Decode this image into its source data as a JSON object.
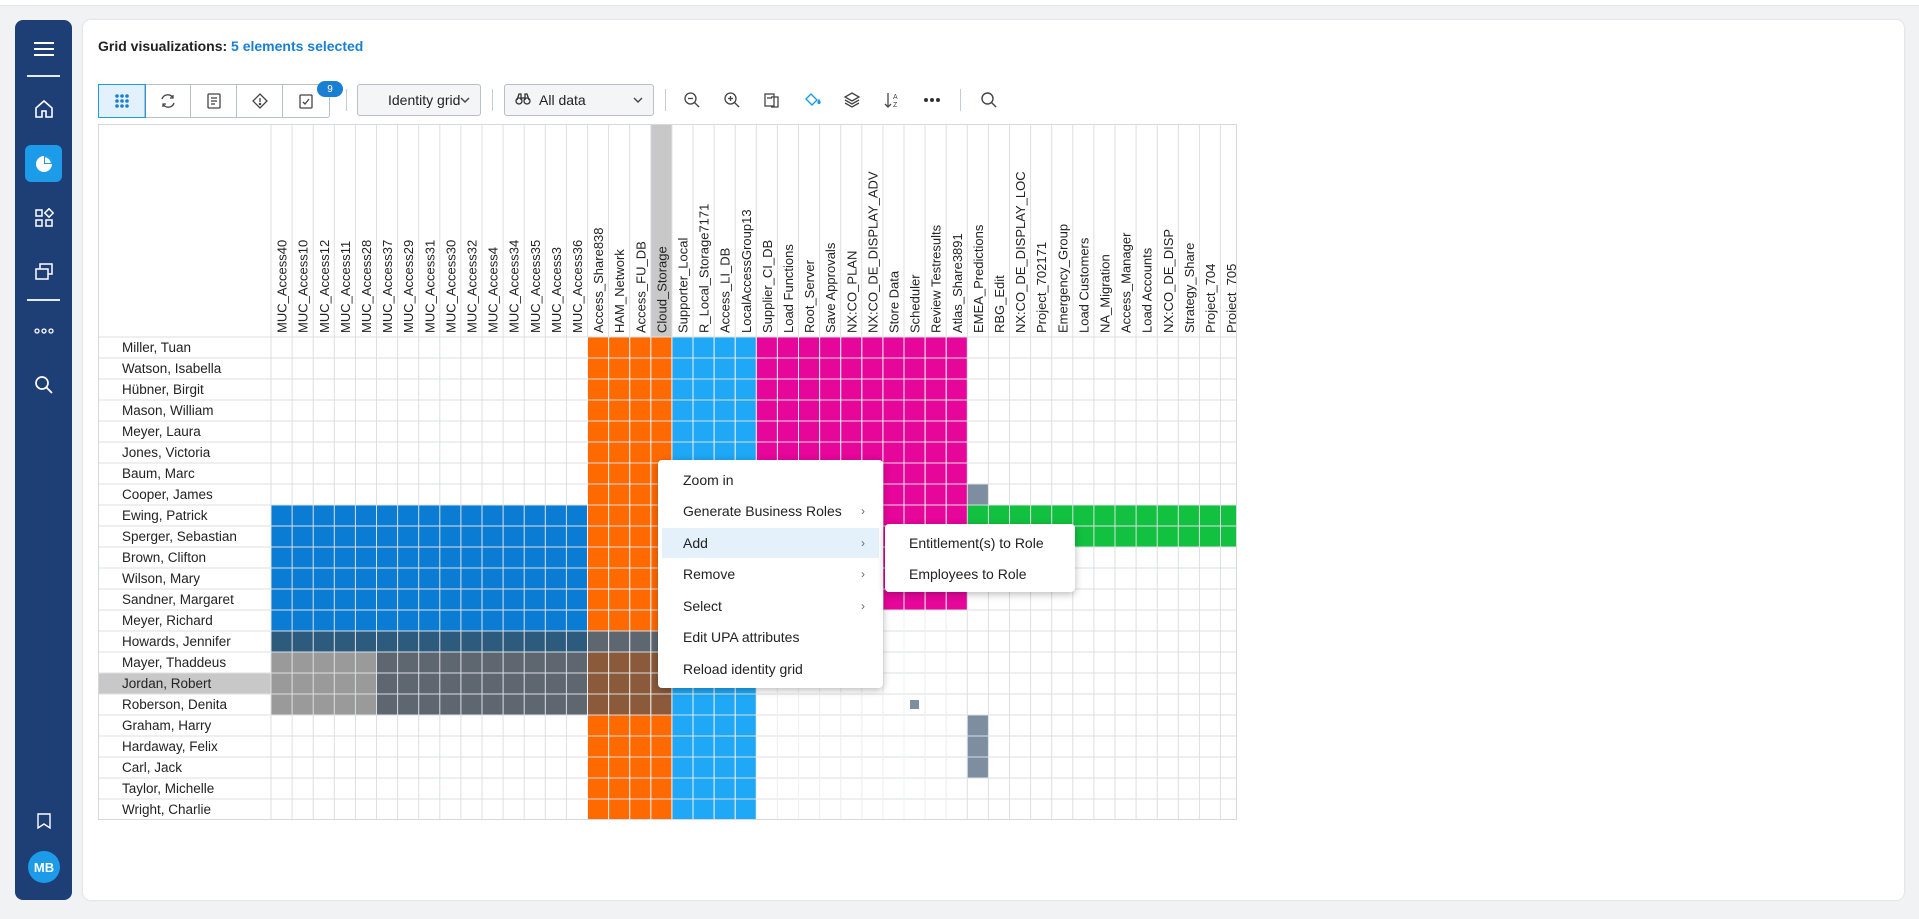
{
  "header": {
    "title_prefix": "Grid visualizations:",
    "selection_text": "5 elements selected"
  },
  "sidebar": {
    "items": [
      {
        "name": "menu-icon"
      },
      {
        "name": "home-icon"
      },
      {
        "name": "chart-pie-icon",
        "active": true
      },
      {
        "name": "dashboard-icon"
      },
      {
        "name": "copy-icon"
      },
      {
        "name": "more-icon"
      },
      {
        "name": "search-icon"
      },
      {
        "name": "book-icon"
      }
    ],
    "avatar_initials": "MB"
  },
  "toolbar": {
    "view_buttons": [
      "grid-view-icon",
      "refresh-icon",
      "document-icon",
      "diamond-icon",
      "checklist-icon"
    ],
    "checklist_badge": "9",
    "grid_type_select": "Identity grid",
    "data_filter_select": "All data",
    "icons": [
      "zoom-out-icon",
      "zoom-in-icon",
      "export-icon",
      "paint-bucket-icon",
      "layers-icon",
      "sort-icon",
      "more-horizontal-icon",
      "search-icon"
    ]
  },
  "grid": {
    "columns": [
      "MUC_Access40",
      "MUC_Access10",
      "MUC_Access12",
      "MUC_Access11",
      "MUC_Access28",
      "MUC_Access37",
      "MUC_Access29",
      "MUC_Access31",
      "MUC_Access30",
      "MUC_Access32",
      "MUC_Access4",
      "MUC_Access34",
      "MUC_Access35",
      "MUC_Access3",
      "MUC_Access36",
      "Access_Share838",
      "HAM_Network",
      "Access_FU_DB",
      "Cloud_Storage",
      "Supporter_Local",
      "R_Local_Storage7171",
      "Access_LI_DB",
      "LocalAccessGroup13",
      "Supplier_CI_DB",
      "Load Functions",
      "Root_Server",
      "Save Approvals",
      "NX:CO_PLAN",
      "NX:CO_DE_DISPLAY_ADV",
      "Store Data",
      "Scheduler",
      "Review Testresults",
      "Atlas_Share3891",
      "EMEA_Predictions",
      "RBG_Edit",
      "NX:CO_DE_DISPLAY_LOC",
      "Project_702171",
      "Emergency_Group",
      "Load Customers",
      "NA_Migration",
      "Access_Manager",
      "Load Accounts",
      "NX:CO_DE_DISP",
      "Strategy_Share",
      "Project_704",
      "Project_705"
    ],
    "rows": [
      "Miller, Tuan",
      "Watson, Isabella",
      "Hübner, Birgit",
      "Mason, William",
      "Meyer, Laura",
      "Jones, Victoria",
      "Baum, Marc",
      "Cooper, James",
      "Ewing, Patrick",
      "Sperger, Sebastian",
      "Brown, Clifton",
      "Wilson, Mary",
      "Sandner, Margaret",
      "Meyer, Richard",
      "Howards, Jennifer",
      "Mayer, Thaddeus",
      "Jordan, Robert",
      "Roberson, Denita",
      "Graham, Harry",
      "Hardaway, Felix",
      "Carl, Jack",
      "Taylor, Michelle",
      "Wright, Charlie"
    ],
    "highlighted_column": "Cloud_Storage",
    "highlighted_row": "Jordan, Robert",
    "colors": {
      "orange": "#ff6a00",
      "light_blue": "#1ea8f5",
      "magenta": "#e6069a",
      "blue": "#0b7cd3",
      "green": "#13c140",
      "slate": "#7c8ea0",
      "dark_teal": "#2c5b7e",
      "gray": "#9a9a9a",
      "dark_gray": "#5e6670",
      "brown": "#8a5a3a",
      "header_gray": "#c8c8c8"
    }
  },
  "context_menu": {
    "items": [
      {
        "label": "Zoom in",
        "submenu": false
      },
      {
        "label": "Generate Business Roles",
        "submenu": true
      },
      {
        "label": "Add",
        "submenu": true,
        "highlighted": true
      },
      {
        "label": "Remove",
        "submenu": true
      },
      {
        "label": "Select",
        "submenu": true
      },
      {
        "label": "Edit UPA attributes",
        "submenu": false
      },
      {
        "label": "Reload identity grid",
        "submenu": false
      }
    ],
    "submenu_items": [
      "Entitlement(s) to Role",
      "Employees to Role"
    ]
  }
}
